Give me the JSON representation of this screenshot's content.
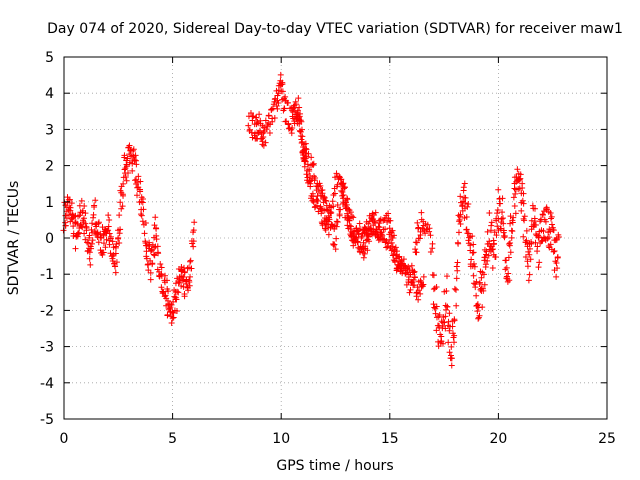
{
  "chart_data": {
    "type": "scatter",
    "title": "Day 074 of 2020, Sidereal Day-to-day VTEC variation (SDTVAR) for receiver maw1",
    "xlabel": "GPS time / hours",
    "ylabel": "SDTVAR / TECUs",
    "xlim": [
      0,
      25
    ],
    "ylim": [
      -5,
      5
    ],
    "xticks": [
      0,
      5,
      10,
      15,
      20,
      25
    ],
    "yticks": [
      -5,
      -4,
      -3,
      -2,
      -1,
      0,
      1,
      2,
      3,
      4,
      5
    ],
    "grid": true,
    "marker": "plus",
    "color": "#ff0000",
    "series": [
      {
        "name": "SDTVAR",
        "segments": [
          {
            "x": [
              0.0,
              0.2,
              0.4,
              0.6,
              0.8,
              1.0,
              1.2,
              1.4,
              1.6,
              1.8,
              2.0,
              2.2,
              2.4,
              2.6,
              2.8,
              3.0,
              3.2,
              3.4,
              3.6,
              3.8,
              4.0,
              4.2,
              4.4,
              4.6,
              4.8,
              5.0,
              5.2,
              5.4,
              5.6,
              5.8,
              6.0
            ],
            "y": [
              0.5,
              1.0,
              0.6,
              0.0,
              0.8,
              0.3,
              -0.4,
              0.7,
              0.2,
              -0.2,
              0.3,
              -0.3,
              -0.6,
              0.8,
              1.9,
              2.1,
              2.2,
              1.5,
              0.9,
              -0.2,
              -0.8,
              0.2,
              -1.1,
              -1.3,
              -1.8,
              -2.0,
              -1.6,
              -0.8,
              -1.3,
              -1.0,
              0.6
            ],
            "spread": 0.45
          },
          {
            "x": [
              8.5,
              8.8,
              9.0,
              9.2,
              9.5,
              9.8,
              10.0,
              10.2,
              10.5,
              10.8,
              11.0,
              11.2,
              11.5,
              11.8,
              12.0,
              12.2,
              12.5,
              12.8,
              13.0,
              13.2,
              13.5,
              13.8,
              14.0,
              14.3,
              14.6,
              15.0,
              15.3,
              15.6,
              16.0,
              16.3,
              16.6,
              17.0
            ],
            "y": [
              3.3,
              3.0,
              3.1,
              2.8,
              3.2,
              3.8,
              4.2,
              3.5,
              3.2,
              3.6,
              2.4,
              2.2,
              1.8,
              1.2,
              0.8,
              0.4,
              0.0,
              1.4,
              0.9,
              0.4,
              0.0,
              -0.2,
              0.0,
              0.5,
              0.2,
              0.4,
              -0.6,
              -0.9,
              -1.3,
              0.2,
              0.5,
              -0.4
            ],
            "spread": 0.35
          },
          {
            "x": [
              10.5,
              10.8,
              11.0,
              11.3,
              11.6,
              12.0,
              12.3,
              12.6,
              13.0,
              13.3,
              13.6,
              14.0,
              14.3,
              14.6,
              15.0,
              15.3,
              15.6,
              16.0,
              16.3,
              16.6
            ],
            "y": [
              3.6,
              3.5,
              2.6,
              1.4,
              1.0,
              0.4,
              0.8,
              1.8,
              0.6,
              0.0,
              0.2,
              0.4,
              0.3,
              0.1,
              -0.1,
              -0.6,
              -0.8,
              -1.0,
              -1.5,
              -1.1
            ],
            "spread": 0.25
          },
          {
            "x": [
              17.0,
              17.2,
              17.4,
              17.6,
              17.8,
              18.0,
              18.2,
              18.4,
              18.6,
              18.8,
              19.0,
              19.2,
              19.4,
              19.6,
              19.8,
              20.0,
              20.2,
              20.4,
              20.6,
              20.8,
              21.0,
              21.2,
              21.4,
              21.6,
              21.8,
              22.0,
              22.2,
              22.4,
              22.6,
              22.8
            ],
            "y": [
              -1.2,
              -2.3,
              -2.8,
              -1.5,
              -3.2,
              -2.2,
              0.8,
              1.2,
              0.4,
              -0.5,
              -1.8,
              -1.5,
              -0.8,
              0.2,
              -0.4,
              0.8,
              0.6,
              -1.2,
              0.2,
              1.2,
              1.6,
              0.4,
              -0.8,
              0.6,
              -0.3,
              0.0,
              0.5,
              0.2,
              -0.6,
              -0.2
            ],
            "spread": 0.6
          }
        ]
      }
    ]
  }
}
